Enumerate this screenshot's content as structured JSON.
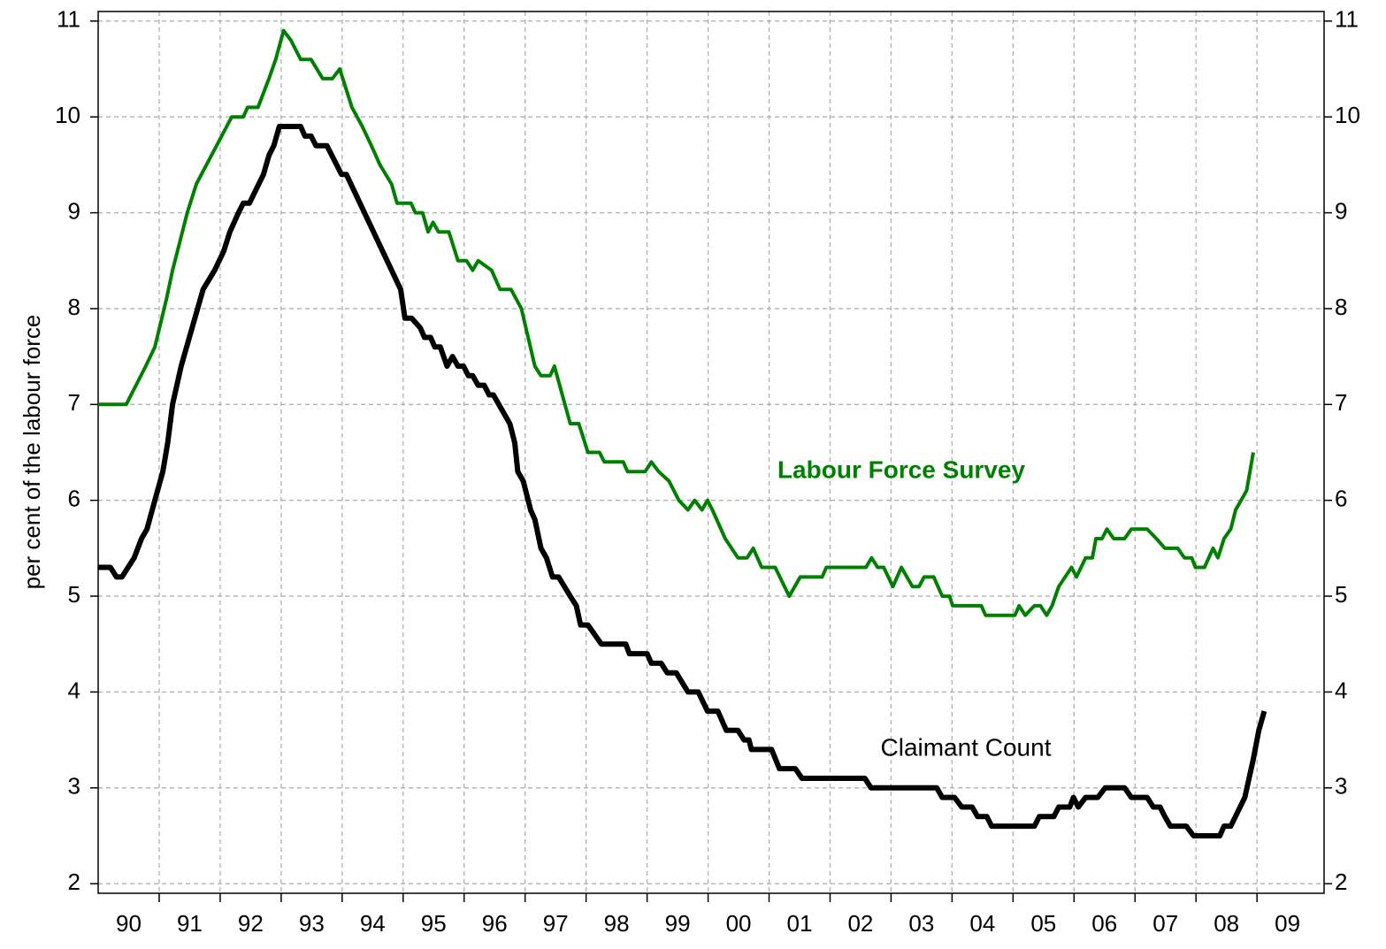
{
  "chart_data": {
    "type": "line",
    "y_label": "per cent of the labour force",
    "xlim": [
      1990,
      2010.1
    ],
    "xticks": [
      {
        "value": 1990.5,
        "label": "90"
      },
      {
        "value": 1991.5,
        "label": "91"
      },
      {
        "value": 1992.5,
        "label": "92"
      },
      {
        "value": 1993.5,
        "label": "93"
      },
      {
        "value": 1994.5,
        "label": "94"
      },
      {
        "value": 1995.5,
        "label": "95"
      },
      {
        "value": 1996.5,
        "label": "96"
      },
      {
        "value": 1997.5,
        "label": "97"
      },
      {
        "value": 1998.5,
        "label": "98"
      },
      {
        "value": 1999.5,
        "label": "99"
      },
      {
        "value": 2000.5,
        "label": "00"
      },
      {
        "value": 2001.5,
        "label": "01"
      },
      {
        "value": 2002.5,
        "label": "02"
      },
      {
        "value": 2003.5,
        "label": "03"
      },
      {
        "value": 2004.5,
        "label": "04"
      },
      {
        "value": 2005.5,
        "label": "05"
      },
      {
        "value": 2006.5,
        "label": "06"
      },
      {
        "value": 2007.5,
        "label": "07"
      },
      {
        "value": 2008.5,
        "label": "08"
      },
      {
        "value": 2009.5,
        "label": "09"
      }
    ],
    "xgrid": [
      1991,
      1992,
      1993,
      1994,
      1995,
      1996,
      1997,
      1998,
      1999,
      2000,
      2001,
      2002,
      2003,
      2004,
      2005,
      2006,
      2007,
      2008,
      2009
    ],
    "ylim": [
      1.9,
      11.1
    ],
    "yticks": [
      2,
      3,
      4,
      5,
      6,
      7,
      8,
      9,
      10,
      11
    ],
    "y2lim": [
      1.9,
      11.1
    ],
    "y2ticks": [
      2,
      3,
      4,
      5,
      6,
      7,
      8,
      9,
      10,
      11
    ],
    "grid": true,
    "series": [
      {
        "name": "Labour Force Survey",
        "color": "#008000",
        "x": [
          1990.0,
          1990.46,
          1990.78,
          1990.93,
          1991.12,
          1991.22,
          1991.46,
          1991.61,
          1992.19,
          1992.38,
          1992.45,
          1992.62,
          1992.8,
          1992.91,
          1993.04,
          1993.16,
          1993.32,
          1993.49,
          1993.68,
          1993.84,
          1993.96,
          1994.16,
          1994.33,
          1994.48,
          1994.62,
          1994.81,
          1994.9,
          1995.13,
          1995.2,
          1995.32,
          1995.41,
          1995.49,
          1995.58,
          1995.75,
          1995.9,
          1996.04,
          1996.14,
          1996.23,
          1996.45,
          1996.59,
          1996.77,
          1996.94,
          1997.16,
          1997.26,
          1997.41,
          1997.48,
          1997.74,
          1997.88,
          1998.03,
          1998.22,
          1998.3,
          1998.61,
          1998.68,
          1998.97,
          1999.07,
          1999.19,
          1999.36,
          1999.52,
          1999.67,
          1999.78,
          1999.9,
          1999.99,
          2000.07,
          2000.28,
          2000.49,
          2000.64,
          2000.74,
          2000.88,
          2001.1,
          2001.33,
          2001.51,
          2001.87,
          2001.94,
          2002.59,
          2002.68,
          2002.78,
          2002.88,
          2003.03,
          2003.17,
          2003.35,
          2003.46,
          2003.54,
          2003.7,
          2003.84,
          2003.96,
          2004.01,
          2004.48,
          2004.55,
          2005.03,
          2005.1,
          2005.2,
          2005.35,
          2005.45,
          2005.55,
          2005.64,
          2005.75,
          2005.96,
          2006.04,
          2006.19,
          2006.3,
          2006.36,
          2006.46,
          2006.54,
          2006.65,
          2006.83,
          2006.94,
          2007.2,
          2007.35,
          2007.49,
          2007.7,
          2007.81,
          2007.93,
          2007.99,
          2008.14,
          2008.28,
          2008.36,
          2008.46,
          2008.57,
          2008.65,
          2008.83,
          2008.94
        ],
        "values": [
          7.0,
          7.0,
          7.4,
          7.6,
          8.1,
          8.4,
          9.0,
          9.3,
          10.0,
          10.0,
          10.1,
          10.1,
          10.4,
          10.6,
          10.9,
          10.8,
          10.6,
          10.6,
          10.4,
          10.4,
          10.5,
          10.1,
          9.9,
          9.7,
          9.5,
          9.3,
          9.1,
          9.1,
          9.0,
          9.0,
          8.8,
          8.9,
          8.8,
          8.8,
          8.5,
          8.5,
          8.4,
          8.5,
          8.4,
          8.2,
          8.2,
          8.0,
          7.4,
          7.3,
          7.3,
          7.4,
          6.8,
          6.8,
          6.5,
          6.5,
          6.4,
          6.4,
          6.3,
          6.3,
          6.4,
          6.3,
          6.2,
          6.0,
          5.9,
          6.0,
          5.9,
          6.0,
          5.9,
          5.6,
          5.4,
          5.4,
          5.5,
          5.3,
          5.3,
          5.0,
          5.2,
          5.2,
          5.3,
          5.3,
          5.4,
          5.3,
          5.3,
          5.1,
          5.3,
          5.1,
          5.1,
          5.2,
          5.2,
          5.0,
          5.0,
          4.9,
          4.9,
          4.8,
          4.8,
          4.9,
          4.8,
          4.9,
          4.9,
          4.8,
          4.9,
          5.1,
          5.3,
          5.2,
          5.4,
          5.4,
          5.6,
          5.6,
          5.7,
          5.6,
          5.6,
          5.7,
          5.7,
          5.6,
          5.5,
          5.5,
          5.4,
          5.4,
          5.3,
          5.3,
          5.5,
          5.4,
          5.6,
          5.7,
          5.9,
          6.1,
          6.5
        ]
      },
      {
        "name": "Claimant Count",
        "color": "#000000",
        "x": [
          1990.0,
          1990.2,
          1990.3,
          1990.39,
          1990.49,
          1990.59,
          1990.71,
          1990.8,
          1990.93,
          1991.06,
          1991.14,
          1991.22,
          1991.36,
          1991.72,
          1991.91,
          1992.06,
          1992.16,
          1992.3,
          1992.38,
          1992.48,
          1992.71,
          1992.8,
          1992.88,
          1992.97,
          1993.32,
          1993.39,
          1993.49,
          1993.57,
          1993.75,
          1993.99,
          1994.07,
          1994.96,
          1995.03,
          1995.14,
          1995.28,
          1995.35,
          1995.45,
          1995.52,
          1995.61,
          1995.72,
          1995.81,
          1995.9,
          1995.99,
          1996.07,
          1996.14,
          1996.23,
          1996.33,
          1996.41,
          1996.48,
          1996.75,
          1996.83,
          1996.88,
          1996.97,
          1997.09,
          1997.16,
          1997.26,
          1997.35,
          1997.45,
          1997.55,
          1997.74,
          1997.84,
          1997.91,
          1998.03,
          1998.25,
          1998.65,
          1998.71,
          1999.0,
          1999.07,
          1999.23,
          1999.33,
          1999.48,
          1999.67,
          1999.84,
          1999.99,
          2000.16,
          2000.3,
          2000.49,
          2000.59,
          2000.67,
          2000.71,
          2001.04,
          2001.17,
          2001.43,
          2001.54,
          2002.57,
          2002.67,
          2003.75,
          2003.84,
          2004.04,
          2004.16,
          2004.33,
          2004.42,
          2004.57,
          2004.65,
          2005.35,
          2005.43,
          2005.67,
          2005.75,
          2005.93,
          2005.99,
          2006.07,
          2006.19,
          2006.39,
          2006.51,
          2006.83,
          2006.94,
          2007.2,
          2007.3,
          2007.41,
          2007.49,
          2007.58,
          2007.84,
          2007.96,
          2008.39,
          2008.46,
          2008.57,
          2008.8,
          2008.94,
          2009.03,
          2009.12
        ],
        "values": [
          5.3,
          5.3,
          5.2,
          5.2,
          5.3,
          5.4,
          5.6,
          5.7,
          6.0,
          6.3,
          6.6,
          7.0,
          7.4,
          8.2,
          8.4,
          8.6,
          8.8,
          9.0,
          9.1,
          9.1,
          9.4,
          9.6,
          9.7,
          9.9,
          9.9,
          9.8,
          9.8,
          9.7,
          9.7,
          9.4,
          9.4,
          8.2,
          7.9,
          7.9,
          7.8,
          7.7,
          7.7,
          7.6,
          7.6,
          7.4,
          7.5,
          7.4,
          7.4,
          7.3,
          7.3,
          7.2,
          7.2,
          7.1,
          7.1,
          6.8,
          6.6,
          6.3,
          6.2,
          5.9,
          5.8,
          5.5,
          5.4,
          5.2,
          5.2,
          5.0,
          4.9,
          4.7,
          4.7,
          4.5,
          4.5,
          4.4,
          4.4,
          4.3,
          4.3,
          4.2,
          4.2,
          4.0,
          4.0,
          3.8,
          3.8,
          3.6,
          3.6,
          3.5,
          3.5,
          3.4,
          3.4,
          3.2,
          3.2,
          3.1,
          3.1,
          3.0,
          3.0,
          2.9,
          2.9,
          2.8,
          2.8,
          2.7,
          2.7,
          2.6,
          2.6,
          2.7,
          2.7,
          2.8,
          2.8,
          2.9,
          2.8,
          2.9,
          2.9,
          3.0,
          3.0,
          2.9,
          2.9,
          2.8,
          2.8,
          2.7,
          2.6,
          2.6,
          2.5,
          2.5,
          2.6,
          2.6,
          2.9,
          3.3,
          3.6,
          3.8
        ]
      }
    ]
  }
}
